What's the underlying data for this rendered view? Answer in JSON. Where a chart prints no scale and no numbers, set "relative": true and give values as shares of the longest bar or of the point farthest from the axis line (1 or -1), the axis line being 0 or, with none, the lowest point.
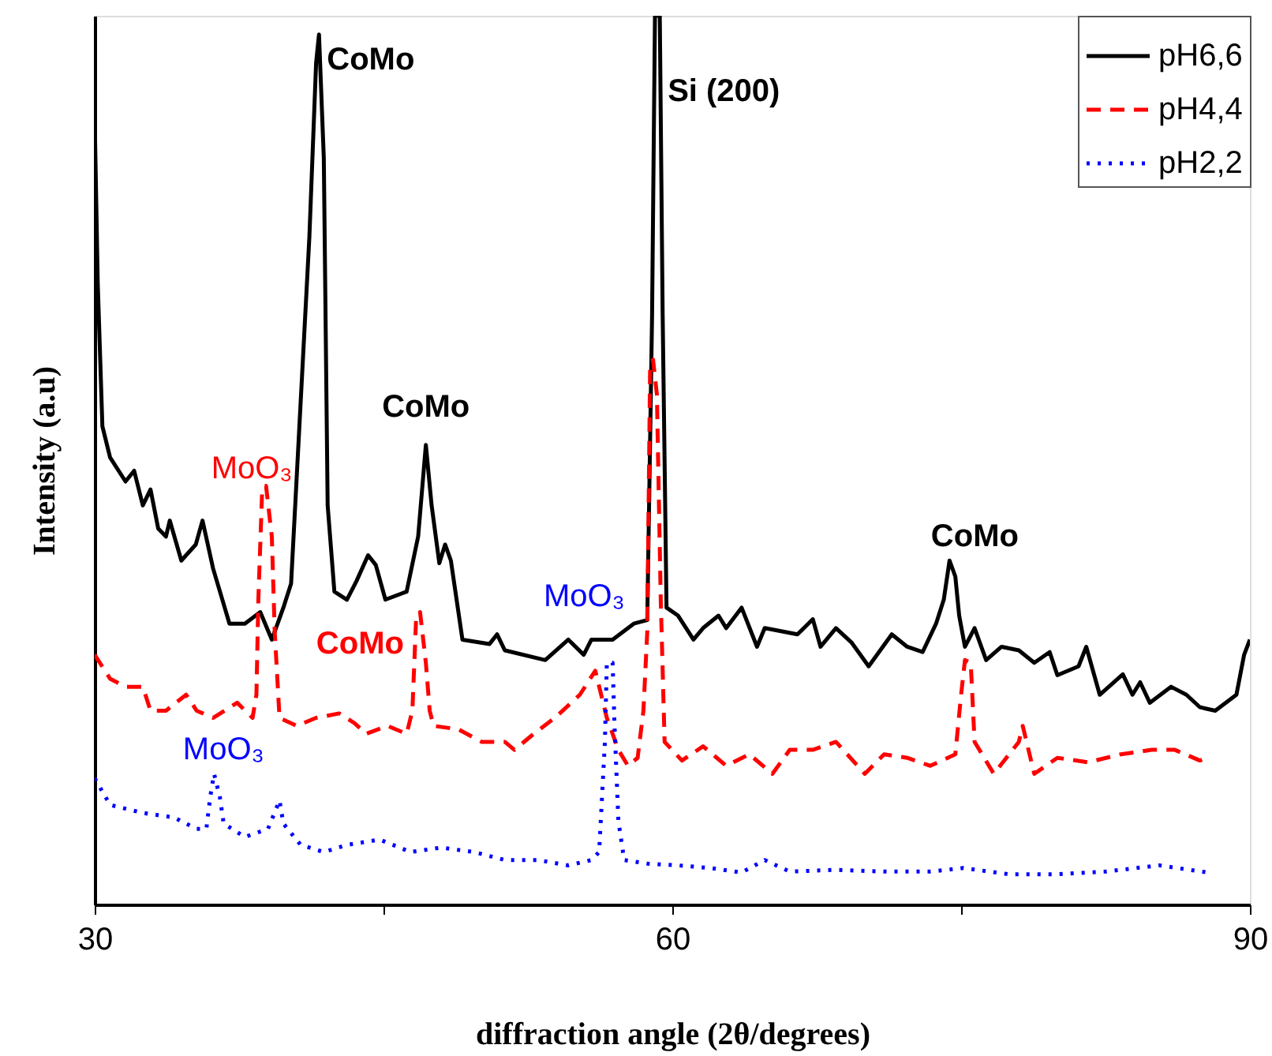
{
  "chart_data": {
    "type": "line",
    "relative": true,
    "xlabel": "diffraction angle (2θ/degrees)",
    "ylabel": "Intensity (a.u)",
    "xlim": [
      30,
      90
    ],
    "xticks": [
      30,
      {
        "value": 45,
        "label": null
      },
      60,
      {
        "value": 75,
        "label": null
      },
      90
    ],
    "grid": false,
    "legend": "top right",
    "marker": "none",
    "tick_labels": "x",
    "series": [
      {
        "name": "pH6,6",
        "color": "#000000",
        "line_style": "solid",
        "x": [
          30.0,
          30.16,
          30.4,
          30.8,
          31.6,
          32.05,
          32.5,
          32.9,
          33.3,
          33.7,
          33.9,
          34.5,
          35.25,
          35.6,
          36.15,
          37.0,
          37.8,
          38.6,
          39.2,
          39.8,
          40.2,
          41.15,
          41.5,
          41.65,
          41.9,
          42.1,
          42.45,
          43.1,
          43.6,
          44.2,
          44.6,
          45.1,
          46.2,
          46.8,
          47.2,
          47.5,
          47.9,
          48.2,
          48.5,
          49.1,
          50.5,
          50.9,
          51.3,
          53.4,
          54.6,
          55.4,
          55.8,
          56.9,
          58.0,
          58.7,
          58.95,
          59.1,
          59.35,
          59.5,
          59.7,
          60.3,
          61.1,
          61.6,
          62.4,
          62.8,
          63.6,
          64.4,
          64.8,
          66.5,
          67.3,
          67.7,
          68.5,
          69.3,
          70.2,
          71.4,
          72.2,
          73.0,
          73.7,
          74.1,
          74.4,
          74.7,
          74.9,
          75.2,
          75.7,
          76.3,
          77.1,
          78.0,
          78.8,
          79.6,
          80.0,
          81.1,
          81.5,
          82.2,
          83.4,
          83.9,
          84.3,
          84.8,
          85.9,
          86.7,
          87.4,
          88.2,
          89.3,
          89.7,
          90.0
        ],
        "values": [
          0.885,
          0.698,
          0.538,
          0.503,
          0.476,
          0.488,
          0.449,
          0.467,
          0.423,
          0.414,
          0.432,
          0.387,
          0.405,
          0.432,
          0.378,
          0.316,
          0.316,
          0.329,
          0.298,
          0.334,
          0.361,
          0.751,
          0.947,
          0.979,
          0.84,
          0.449,
          0.352,
          0.343,
          0.364,
          0.393,
          0.382,
          0.343,
          0.352,
          0.414,
          0.517,
          0.449,
          0.384,
          0.405,
          0.387,
          0.298,
          0.293,
          0.304,
          0.286,
          0.275,
          0.298,
          0.281,
          0.298,
          0.298,
          0.316,
          0.32,
          0.663,
          1.0,
          1.0,
          0.663,
          0.334,
          0.325,
          0.298,
          0.311,
          0.325,
          0.311,
          0.334,
          0.29,
          0.311,
          0.304,
          0.321,
          0.29,
          0.311,
          0.295,
          0.268,
          0.304,
          0.29,
          0.284,
          0.316,
          0.343,
          0.387,
          0.369,
          0.325,
          0.29,
          0.311,
          0.275,
          0.29,
          0.286,
          0.272,
          0.284,
          0.258,
          0.268,
          0.29,
          0.236,
          0.259,
          0.236,
          0.25,
          0.227,
          0.245,
          0.236,
          0.222,
          0.218,
          0.236,
          0.281,
          0.298
        ]
      },
      {
        "name": "pH4,4",
        "color": "#ff0000",
        "line_style": "dashed",
        "x": [
          30.0,
          30.8,
          31.6,
          32.5,
          32.9,
          33.7,
          34.75,
          35.3,
          36.15,
          37.4,
          38.2,
          38.4,
          38.5,
          38.7,
          38.9,
          39.2,
          39.35,
          39.6,
          40.5,
          41.5,
          42.7,
          43.5,
          44.1,
          45.2,
          46.2,
          46.5,
          46.7,
          46.9,
          47.2,
          47.4,
          47.6,
          48.9,
          50.1,
          51.3,
          51.8,
          52.8,
          53.9,
          55.2,
          56.0,
          56.6,
          57.2,
          57.7,
          58.2,
          58.5,
          58.7,
          58.85,
          59.0,
          59.2,
          59.4,
          59.6,
          60.5,
          61.6,
          62.8,
          64.0,
          65.2,
          66.1,
          67.3,
          68.5,
          70.0,
          71.0,
          72.2,
          73.4,
          74.7,
          75.0,
          75.2,
          75.5,
          75.7,
          76.7,
          78.0,
          78.2,
          78.8,
          80.0,
          81.6,
          83.3,
          84.9,
          86.1,
          87.4,
          87.8
        ],
        "values": [
          0.281,
          0.254,
          0.245,
          0.245,
          0.218,
          0.218,
          0.236,
          0.218,
          0.21,
          0.227,
          0.21,
          0.236,
          0.343,
          0.467,
          0.471,
          0.414,
          0.307,
          0.21,
          0.201,
          0.21,
          0.215,
          0.204,
          0.192,
          0.201,
          0.192,
          0.218,
          0.325,
          0.329,
          0.272,
          0.218,
          0.201,
          0.197,
          0.183,
          0.183,
          0.174,
          0.192,
          0.21,
          0.236,
          0.263,
          0.21,
          0.174,
          0.156,
          0.165,
          0.218,
          0.307,
          0.609,
          0.613,
          0.574,
          0.343,
          0.183,
          0.162,
          0.178,
          0.156,
          0.169,
          0.147,
          0.174,
          0.174,
          0.183,
          0.147,
          0.169,
          0.165,
          0.156,
          0.169,
          0.236,
          0.275,
          0.272,
          0.183,
          0.147,
          0.183,
          0.201,
          0.147,
          0.165,
          0.16,
          0.169,
          0.174,
          0.174,
          0.162,
          0.165
        ]
      },
      {
        "name": "pH2,2",
        "color": "#0000ff",
        "line_style": "dotted",
        "x": [
          30.0,
          30.8,
          32.5,
          34.1,
          35.3,
          35.8,
          36.0,
          36.2,
          36.5,
          36.7,
          37.8,
          39.0,
          39.6,
          39.8,
          40.7,
          41.9,
          43.1,
          44.8,
          46.4,
          48.0,
          49.7,
          51.3,
          53.0,
          54.6,
          55.8,
          56.2,
          56.5,
          56.6,
          56.9,
          57.0,
          57.2,
          57.5,
          58.7,
          60.3,
          62.0,
          63.6,
          64.8,
          66.1,
          68.5,
          71.0,
          73.4,
          75.1,
          77.5,
          80.0,
          82.5,
          85.3,
          87.8
        ],
        "values": [
          0.142,
          0.112,
          0.103,
          0.098,
          0.085,
          0.085,
          0.121,
          0.147,
          0.121,
          0.091,
          0.076,
          0.085,
          0.117,
          0.091,
          0.067,
          0.059,
          0.067,
          0.073,
          0.059,
          0.064,
          0.059,
          0.05,
          0.05,
          0.044,
          0.05,
          0.059,
          0.183,
          0.272,
          0.272,
          0.201,
          0.094,
          0.05,
          0.046,
          0.044,
          0.041,
          0.036,
          0.05,
          0.037,
          0.039,
          0.037,
          0.037,
          0.041,
          0.034,
          0.034,
          0.037,
          0.044,
          0.036
        ]
      }
    ],
    "annotations": [
      {
        "text": "CoMo",
        "x": 41.65,
        "y": 0.979
      },
      {
        "text": "CoMo",
        "x": 47.2,
        "y": 0.517
      },
      {
        "text": "Si (200)",
        "x": 59.35,
        "y": 1.0
      },
      {
        "text": "CoMo",
        "x": 74.4,
        "y": 0.387
      },
      {
        "text": "MoO₃",
        "x": 38.9,
        "y": 0.471
      },
      {
        "text": "CoMo",
        "x": 46.9,
        "y": 0.329
      },
      {
        "text": "MoO₃",
        "x": 56.9,
        "y": 0.272
      },
      {
        "text": "MoO₃",
        "x": 36.2,
        "y": 0.147
      }
    ]
  }
}
